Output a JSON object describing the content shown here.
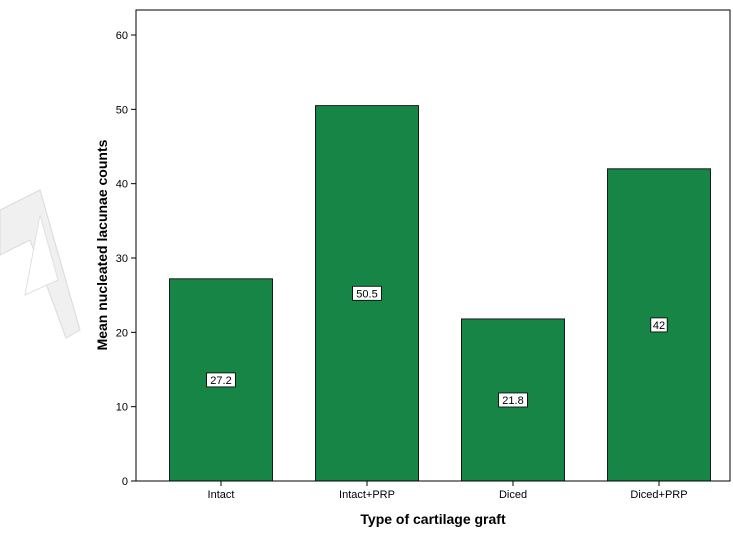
{
  "chart_data": {
    "type": "bar",
    "title": "",
    "xlabel": "Type of cartilage graft",
    "ylabel": "Mean nucleated lacunae counts",
    "categories": [
      "Intact",
      "Intact+PRP",
      "Diced",
      "Diced+PRP"
    ],
    "values": [
      27.2,
      50.5,
      21.8,
      42
    ],
    "data_labels": [
      "27.2",
      "50.5",
      "21.8",
      "42"
    ],
    "ylim": [
      0,
      63
    ],
    "yticks": [
      0,
      10,
      20,
      30,
      40,
      50,
      60
    ],
    "grid": false,
    "legend": "none",
    "colors": {
      "bar_fill": "#178545",
      "bar_stroke": "#1a1a1a",
      "plot_border": "#000000",
      "background": "#ffffff",
      "watermark": "#c8c8c8"
    }
  }
}
